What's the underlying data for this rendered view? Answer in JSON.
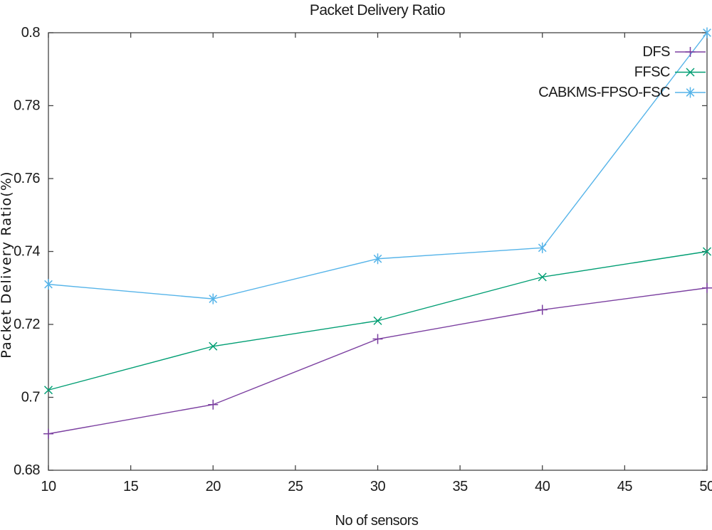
{
  "chart_data": {
    "type": "line",
    "title": "Packet Delivery Ratio",
    "xlabel": "No of sensors",
    "ylabel": "Packet Delivery Ratio(%)",
    "x": [
      10,
      20,
      30,
      40,
      50
    ],
    "xlim": [
      10,
      50
    ],
    "ylim": [
      0.68,
      0.8
    ],
    "xticks": [
      10,
      15,
      20,
      25,
      30,
      35,
      40,
      45,
      50
    ],
    "yticks": [
      "0.68",
      "0.7",
      "0.72",
      "0.74",
      "0.76",
      "0.78",
      "0.8"
    ],
    "grid": false,
    "legend_position": "top-right-inside",
    "axis_color": "#444444",
    "series": [
      {
        "name": "DFS",
        "color": "#7b3fa0",
        "marker": "plus",
        "values": [
          0.69,
          0.698,
          0.716,
          0.724,
          0.73
        ]
      },
      {
        "name": "FFSC",
        "color": "#009e73",
        "marker": "cross",
        "values": [
          0.702,
          0.714,
          0.721,
          0.733,
          0.74
        ]
      },
      {
        "name": "CABKMS-FPSO-FSC",
        "color": "#56b4e9",
        "marker": "asterisk",
        "values": [
          0.731,
          0.727,
          0.738,
          0.741,
          0.8
        ]
      }
    ]
  }
}
